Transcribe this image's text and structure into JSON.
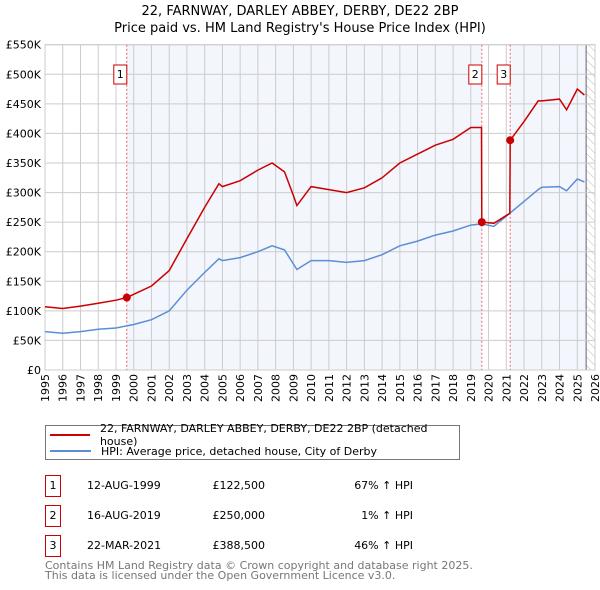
{
  "chart_data": {
    "type": "line",
    "title": "22, FARNWAY, DARLEY ABBEY, DERBY, DE22 2BP",
    "subtitle": "Price paid vs. HM Land Registry's House Price Index (HPI)",
    "xlim": [
      1995,
      2026
    ],
    "ylim": [
      0,
      550000
    ],
    "grid": true,
    "x_ticks": [
      "1995",
      "1996",
      "1997",
      "1998",
      "1999",
      "2000",
      "2001",
      "2002",
      "2003",
      "2004",
      "2005",
      "2006",
      "2007",
      "2008",
      "2009",
      "2010",
      "2011",
      "2012",
      "2013",
      "2014",
      "2015",
      "2016",
      "2017",
      "2018",
      "2019",
      "2020",
      "2021",
      "2022",
      "2023",
      "2024",
      "2025",
      "2026"
    ],
    "y_ticks": [
      {
        "v": 0,
        "label": "£0"
      },
      {
        "v": 50000,
        "label": "£50K"
      },
      {
        "v": 100000,
        "label": "£100K"
      },
      {
        "v": 150000,
        "label": "£150K"
      },
      {
        "v": 200000,
        "label": "£200K"
      },
      {
        "v": 250000,
        "label": "£250K"
      },
      {
        "v": 300000,
        "label": "£300K"
      },
      {
        "v": 350000,
        "label": "£350K"
      },
      {
        "v": 400000,
        "label": "£400K"
      },
      {
        "v": 450000,
        "label": "£450K"
      },
      {
        "v": 500000,
        "label": "£500K"
      },
      {
        "v": 550000,
        "label": "£550K"
      }
    ],
    "series": [
      {
        "name": "22, FARNWAY, DARLEY ABBEY, DERBY, DE22 2BP (detached house)",
        "color": "#cc0000",
        "x": [
          1995,
          1996,
          1997,
          1998,
          1999,
          1999.62,
          2000,
          2001,
          2002,
          2003,
          2004,
          2004.8,
          2005,
          2006,
          2007,
          2007.8,
          2008.5,
          2009,
          2009.2,
          2010,
          2011,
          2012,
          2013,
          2014,
          2015,
          2016,
          2017,
          2018,
          2019,
          2019.6,
          2019.62,
          2020.3,
          2021.2,
          2021.22,
          2022,
          2022.8,
          2023,
          2024,
          2024.4,
          2025,
          2025.4
        ],
        "y": [
          107000,
          104000,
          108000,
          113000,
          118000,
          122500,
          128000,
          142000,
          168000,
          222000,
          275000,
          315000,
          310000,
          320000,
          338000,
          350000,
          335000,
          295000,
          278000,
          310000,
          305000,
          300000,
          308000,
          325000,
          350000,
          365000,
          380000,
          390000,
          410000,
          410000,
          250000,
          248000,
          265000,
          388500,
          420000,
          455000,
          455000,
          458000,
          440000,
          475000,
          465000
        ]
      },
      {
        "name": "HPI: Average price, detached house, City of Derby",
        "color": "#5b8fd4",
        "x": [
          1995,
          1996,
          1997,
          1998,
          1999,
          2000,
          2001,
          2002,
          2003,
          2004,
          2004.8,
          2005,
          2006,
          2007,
          2007.8,
          2008.5,
          2009.2,
          2010,
          2011,
          2012,
          2013,
          2014,
          2015,
          2016,
          2017,
          2018,
          2019,
          2019.6,
          2020.3,
          2021,
          2022,
          2022.8,
          2023,
          2024,
          2024.4,
          2025,
          2025.4
        ],
        "y": [
          65000,
          62000,
          65000,
          69000,
          71000,
          77000,
          85000,
          100000,
          135000,
          165000,
          188000,
          185000,
          190000,
          200000,
          210000,
          203000,
          170000,
          185000,
          185000,
          182000,
          185000,
          195000,
          210000,
          218000,
          228000,
          235000,
          245000,
          247000,
          243000,
          260000,
          285000,
          305000,
          309000,
          310000,
          303000,
          323000,
          318000
        ]
      }
    ],
    "sales": [
      {
        "label": "1",
        "x": 1999.61,
        "y": 122500,
        "date": "12-AUG-1999",
        "price": "£122,500",
        "hpi": "67% ↑ HPI"
      },
      {
        "label": "2",
        "x": 2019.62,
        "y": 250000,
        "date": "16-AUG-2019",
        "price": "£250,000",
        "hpi": "1% ↑ HPI"
      },
      {
        "label": "3",
        "x": 2021.22,
        "y": 388500,
        "date": "22-MAR-2021",
        "price": "£388,500",
        "hpi": "46% ↑ HPI"
      }
    ],
    "forecast_start": 2025.5,
    "legend_position": "bottom"
  },
  "footer": {
    "line1": "Contains HM Land Registry data © Crown copyright and database right 2025.",
    "line2": "This data is licensed under the Open Government Licence v3.0."
  }
}
